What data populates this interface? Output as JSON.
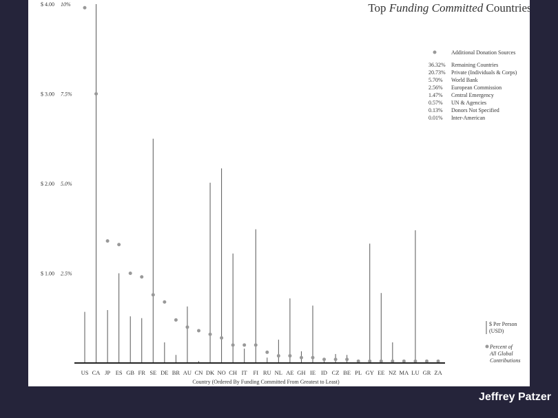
{
  "credit": "Jeffrey Patzer",
  "chart_data": {
    "type": "scatter",
    "title_parts": [
      {
        "text": "Top ",
        "italic": false
      },
      {
        "text": "Funding Committed",
        "italic": true
      },
      {
        "text": " Countries",
        "italic": false
      }
    ],
    "xlabel": "Country (Ordered By Funding Committed From Greatest to Least)",
    "categories": [
      "US",
      "CA",
      "JP",
      "ES",
      "GB",
      "FR",
      "SE",
      "DE",
      "BR",
      "AU",
      "CN",
      "DK",
      "NO",
      "CH",
      "IT",
      "FI",
      "RU",
      "NL",
      "AE",
      "GH",
      "IE",
      "ID",
      "CZ",
      "BE",
      "PL",
      "GY",
      "EE",
      "NZ",
      "MA",
      "LU",
      "GR",
      "ZA"
    ],
    "y_usd_ticks": [
      "$ 1.00",
      "$ 2.00",
      "$ 3.00",
      "$ 4.00"
    ],
    "y_pct_ticks": [
      "2.5%",
      "5.0%",
      "7.5%",
      "10%"
    ],
    "ylim_usd": [
      0,
      4
    ],
    "ylim_pct": [
      0,
      10
    ],
    "series": [
      {
        "name": "$ Per Person (USD)",
        "mark": "line",
        "values": [
          0.57,
          4.0,
          0.59,
          1.0,
          0.52,
          0.5,
          2.5,
          0.23,
          0.09,
          0.63,
          0.02,
          2.01,
          2.17,
          1.22,
          0.16,
          1.49,
          0.06,
          0.26,
          0.72,
          0.13,
          0.64,
          0.03,
          0.1,
          0.09,
          0.03,
          1.33,
          0.78,
          0.23,
          0.02,
          1.48,
          0.03,
          0.02
        ]
      },
      {
        "name": "Percent of All Global Contributions",
        "mark": "dot",
        "values": [
          9.9,
          7.5,
          3.4,
          3.3,
          2.5,
          2.4,
          1.9,
          1.7,
          1.2,
          1.0,
          0.9,
          0.8,
          0.7,
          0.5,
          0.5,
          0.5,
          0.3,
          0.2,
          0.2,
          0.15,
          0.15,
          0.1,
          0.1,
          0.1,
          0.05,
          0.05,
          0.05,
          0.05,
          0.05,
          0.05,
          0.05,
          0.05
        ]
      }
    ],
    "additional_sources": {
      "label": "Additional Donation Sources",
      "items": [
        {
          "pct": "36.32%",
          "label": "Remaining Countries"
        },
        {
          "pct": "20.73%",
          "label": "Private (Individuals & Corps)"
        },
        {
          "pct": "5.70%",
          "label": "World Bank"
        },
        {
          "pct": "2.56%",
          "label": "European Commission"
        },
        {
          "pct": "1.47%",
          "label": "Central Emergency"
        },
        {
          "pct": "0.57%",
          "label": "UN & Agencies"
        },
        {
          "pct": "0.13%",
          "label": "Donors Not Specified"
        },
        {
          "pct": "0.01%",
          "label": "Inter-American"
        }
      ]
    },
    "legend_lines": {
      "usd": [
        "$ Per Person",
        "(USD)"
      ],
      "pct": [
        "Percent of",
        "All Global",
        "Contributions"
      ]
    },
    "colors": {
      "line": "#555555",
      "dot": "#999999",
      "axis": "#222222",
      "background": "#25243a"
    }
  }
}
